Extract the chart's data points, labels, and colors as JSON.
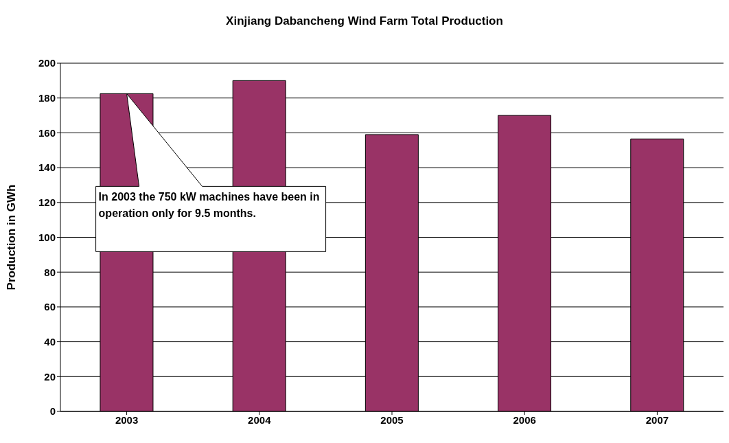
{
  "chart_data": {
    "type": "bar",
    "title": "Xinjiang Dabancheng Wind Farm Total Production",
    "ylabel": "Production in GWh",
    "categories": [
      "2003",
      "2004",
      "2005",
      "2006",
      "2007"
    ],
    "values": [
      182.5,
      190,
      159,
      170,
      156.5
    ],
    "color": "#993366",
    "ylim": [
      0,
      200
    ],
    "yticks": [
      0,
      20,
      40,
      60,
      80,
      100,
      120,
      140,
      160,
      180,
      200
    ],
    "grid": "y",
    "annotations": [
      "In 2003 the 750 kW machines have been in operation only for 9.5 months."
    ]
  }
}
